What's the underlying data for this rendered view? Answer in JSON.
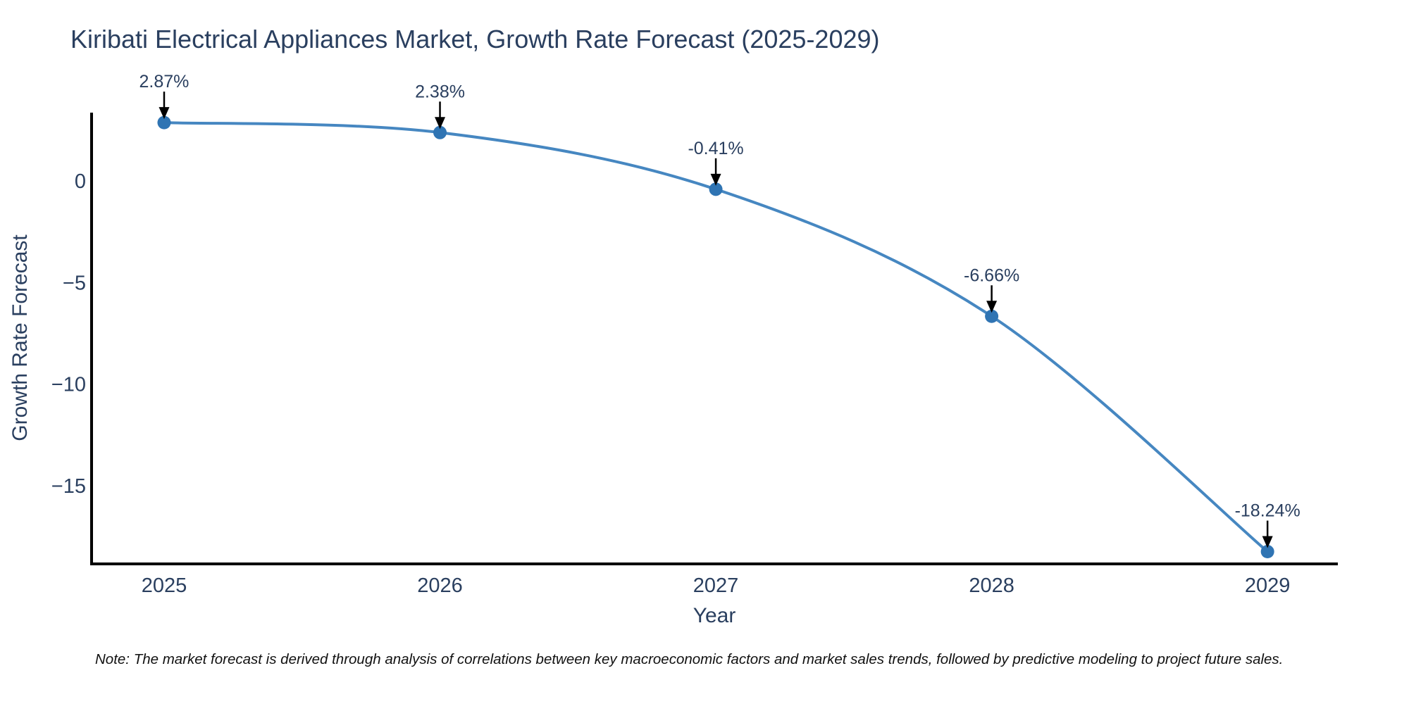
{
  "chart_data": {
    "type": "line",
    "title": "Kiribati Electrical Appliances Market, Growth Rate Forecast (2025-2029)",
    "xlabel": "Year",
    "ylabel": "Growth Rate Forecast",
    "x": [
      2025,
      2026,
      2027,
      2028,
      2029
    ],
    "y": [
      2.87,
      2.38,
      -0.41,
      -6.66,
      -18.24
    ],
    "point_labels": [
      "2.87%",
      "2.38%",
      "-0.41%",
      "-6.66%",
      "-18.24%"
    ],
    "xtick_labels": [
      "2025",
      "2026",
      "2027",
      "2028",
      "2029"
    ],
    "xtick_values": [
      2025,
      2026,
      2027,
      2028,
      2029
    ],
    "ytick_labels": [
      "0",
      "−5",
      "−10",
      "−15"
    ],
    "ytick_values": [
      0,
      -5,
      -10,
      -15
    ],
    "x_range": [
      2024.737,
      2029.255
    ],
    "y_range": [
      -18.845,
      3.36
    ],
    "line_shape": "spline",
    "grid": false,
    "legend": "none",
    "colors": {
      "line": "#4687c1",
      "marker": "#2f74b3",
      "axis": "#000000",
      "text": "#2a3f5f",
      "annotation_arrow": "#000000",
      "note": "#111111",
      "background": "#ffffff"
    },
    "note": "Note: The market forecast is derived through analysis of correlations between key macroeconomic factors and market sales trends, followed by predictive modeling to project future sales."
  }
}
